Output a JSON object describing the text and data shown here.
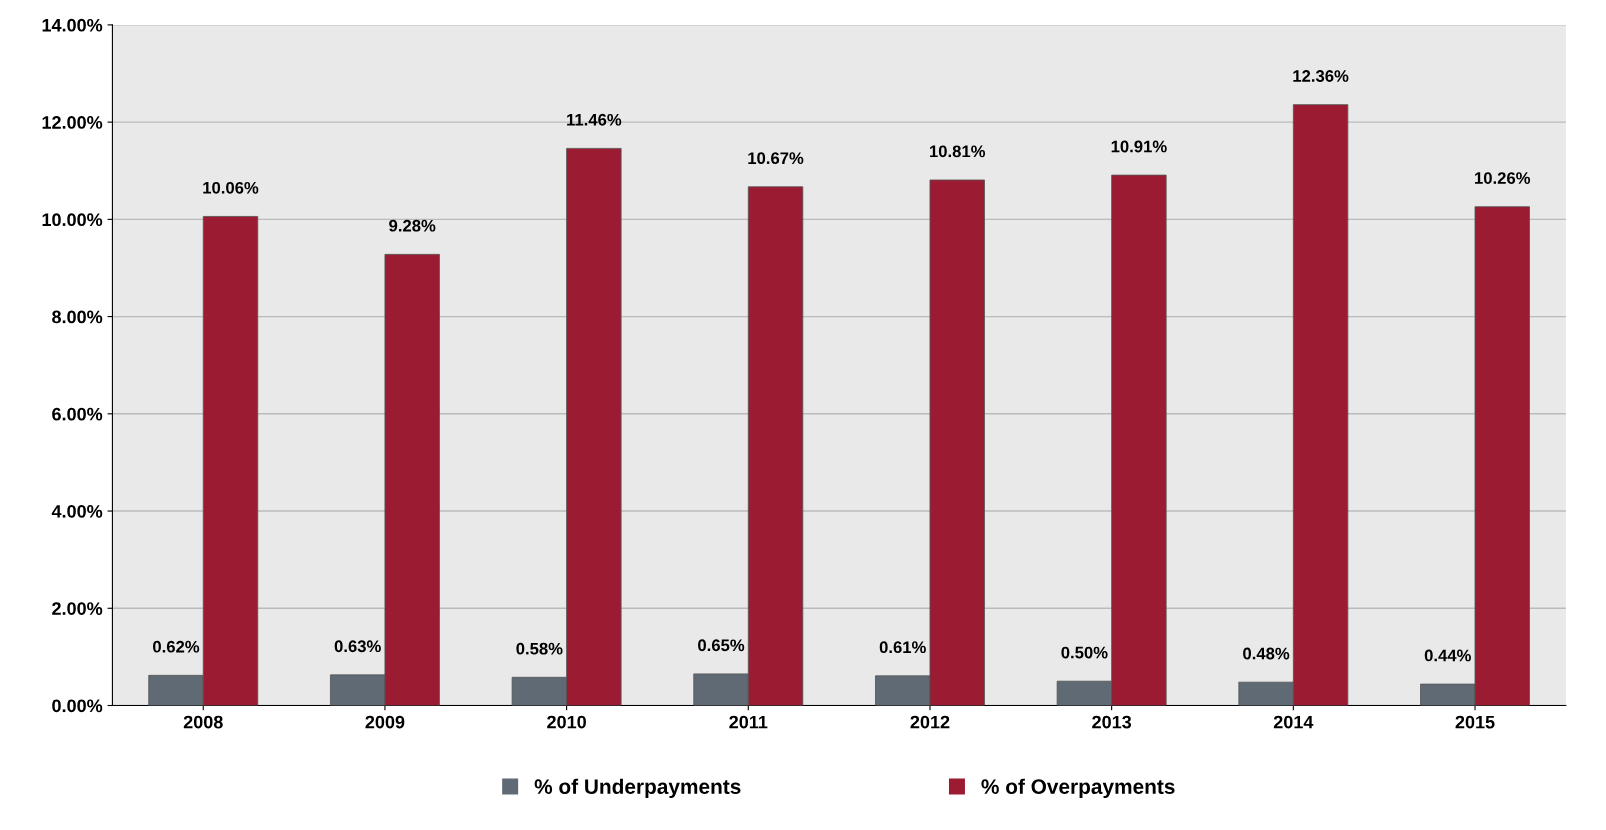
{
  "chart_data": {
    "type": "bar",
    "categories": [
      "2008",
      "2009",
      "2010",
      "2011",
      "2012",
      "2013",
      "2014",
      "2015"
    ],
    "series": [
      {
        "name": "% of Underpayments",
        "color": "#5f6a74",
        "values": [
          0.62,
          0.63,
          0.58,
          0.65,
          0.61,
          0.5,
          0.48,
          0.44
        ],
        "value_labels": [
          "0.62%",
          "0.63%",
          "0.58%",
          "0.65%",
          "0.61%",
          "0.50%",
          "0.48%",
          "0.44%"
        ]
      },
      {
        "name": "% of Overpayments",
        "color": "#9b1b32",
        "values": [
          10.06,
          9.28,
          11.46,
          10.67,
          10.81,
          10.91,
          12.36,
          10.26
        ],
        "value_labels": [
          "10.06%",
          "9.28%",
          "11.46%",
          "10.67%",
          "10.81%",
          "10.91%",
          "12.36%",
          "10.26%"
        ]
      }
    ],
    "ylim": [
      0,
      14
    ],
    "yticks": [
      {
        "value": 0,
        "label": "0.00%"
      },
      {
        "value": 2,
        "label": "2.00%"
      },
      {
        "value": 4,
        "label": "4.00%"
      },
      {
        "value": 6,
        "label": "6.00%"
      },
      {
        "value": 8,
        "label": "8.00%"
      },
      {
        "value": 10,
        "label": "10.00%"
      },
      {
        "value": 12,
        "label": "12.00%"
      },
      {
        "value": 14,
        "label": "14.00%"
      }
    ],
    "grid": "y",
    "legend": "bottom"
  }
}
